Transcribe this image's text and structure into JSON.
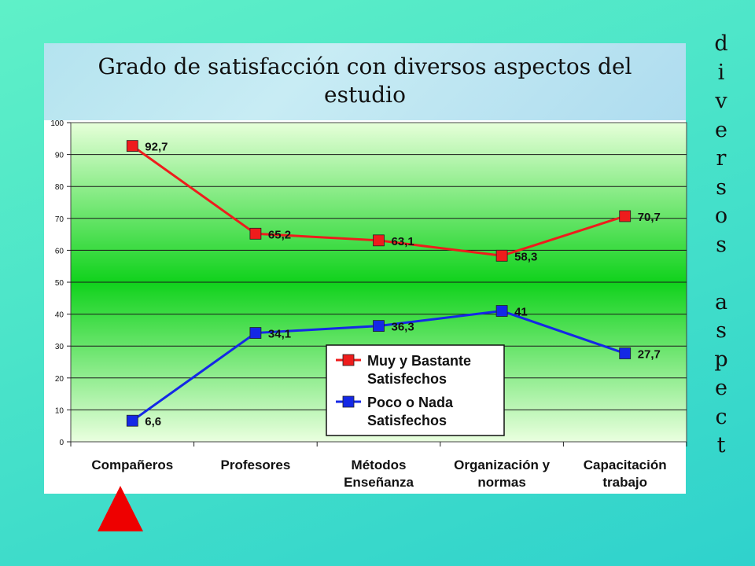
{
  "slide": {
    "title_line1": "Grado de satisfacción con diversos aspectos del",
    "title_line2": "estudio",
    "side_letters": [
      "d",
      "i",
      "v",
      "e",
      "r",
      "s",
      "o",
      "s",
      "",
      "a",
      "s",
      "p",
      "e",
      "c",
      "t"
    ]
  },
  "chart_data": {
    "type": "line",
    "title": "Grado de satisfacción con diversos aspectos del estudio",
    "categories": [
      [
        "Compañeros"
      ],
      [
        "Profesores"
      ],
      [
        "Métodos",
        "Enseñanza"
      ],
      [
        "Organización y",
        "normas"
      ],
      [
        "Capacitación",
        "trabajo"
      ]
    ],
    "series": [
      {
        "name": "Muy y Bastante Satisfechos",
        "legend_lines": [
          "Muy y Bastante",
          "Satisfechos"
        ],
        "color": "#ee1c1c",
        "values": [
          92.7,
          65.2,
          63.1,
          58.3,
          70.7
        ],
        "labels": [
          "92,7",
          "65,2",
          "63,1",
          "58,3",
          "70,7"
        ]
      },
      {
        "name": "Poco o Nada Satisfechos",
        "legend_lines": [
          "Poco o Nada",
          "Satisfechos"
        ],
        "color": "#1428e6",
        "values": [
          6.6,
          34.1,
          36.3,
          41,
          27.7
        ],
        "labels": [
          "6,6",
          "34,1",
          "36,3",
          "41",
          "27,7"
        ]
      }
    ],
    "ylim": [
      0,
      100
    ],
    "yticks": [
      0,
      10,
      20,
      30,
      40,
      50,
      60,
      70,
      80,
      90,
      100
    ],
    "grid": true,
    "legend": "center-right inside plot"
  }
}
